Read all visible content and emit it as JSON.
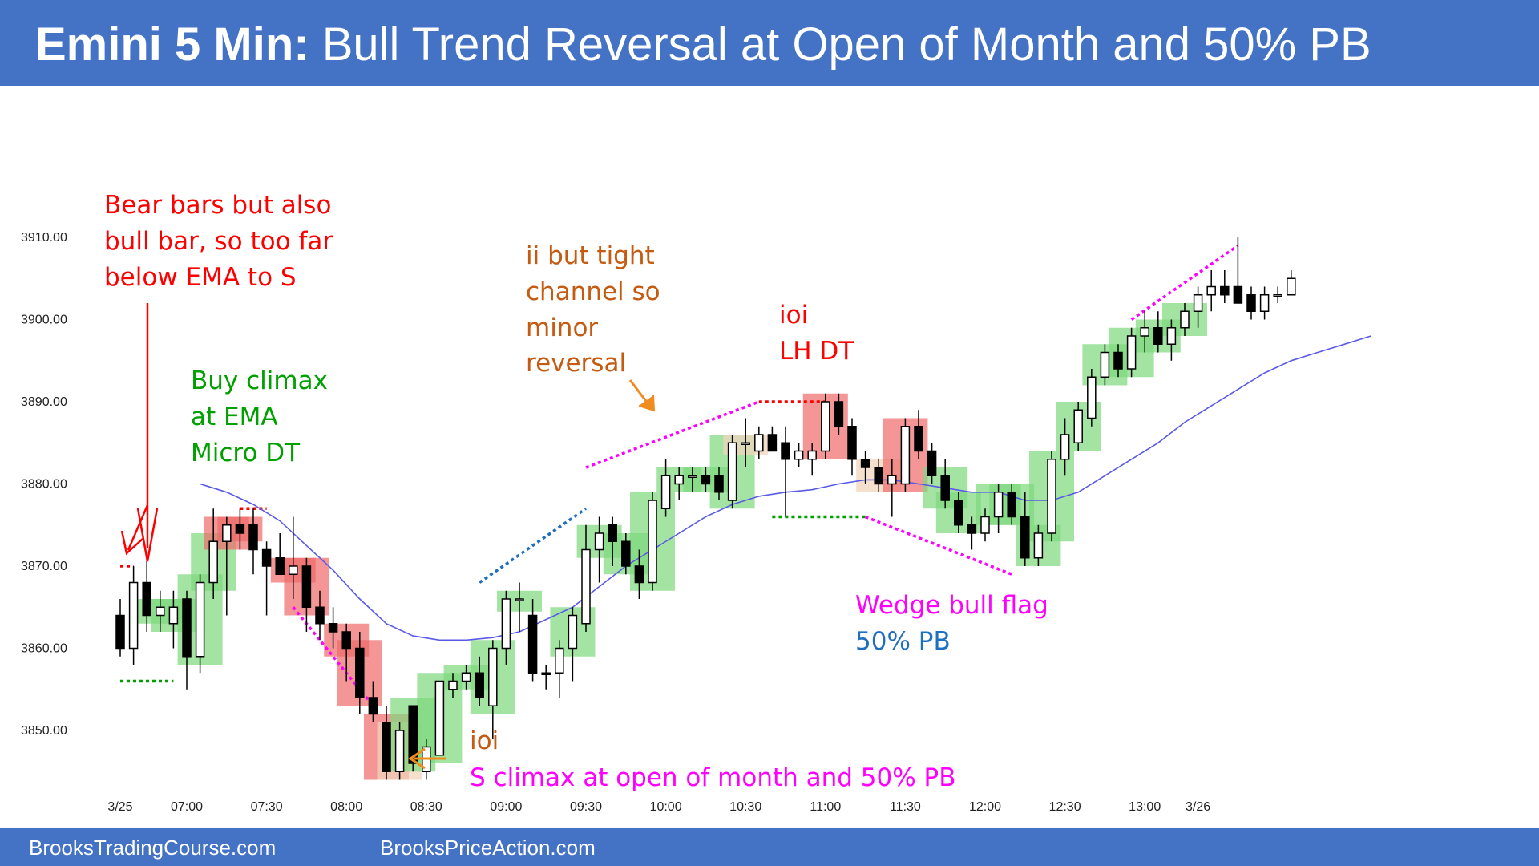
{
  "header": {
    "title_bold": "Emini 5 Min:",
    "title_rest": " Bull Trend Reversal at Open of Month and 50% PB"
  },
  "footer": {
    "left": "BrooksTradingCourse.com",
    "right": "BrooksPriceAction.com"
  },
  "colors": {
    "header_bg": "#4472c4",
    "ema": "#5a5ae6",
    "bull_highlight": "#7cd87c",
    "bear_highlight": "#f06a6a",
    "signal_highlight": "#f2d4bc",
    "red_text": "#ff0000",
    "green_text": "#00a000",
    "orange_text": "#c55a11",
    "magenta_text": "#ff00ff",
    "blue_text": "#1f6fbf"
  },
  "chart_data": {
    "type": "candlestick",
    "title": "",
    "ylim": [
      3843,
      3916
    ],
    "y_ticks": [
      "3850.00",
      "3860.00",
      "3870.00",
      "3880.00",
      "3890.00",
      "3900.00",
      "3910.00"
    ],
    "y_tick_values": [
      3850,
      3860,
      3870,
      3880,
      3890,
      3900,
      3910
    ],
    "x_ticks": [
      {
        "bar": 0,
        "label": "3/25"
      },
      {
        "bar": 5,
        "label": "07:00"
      },
      {
        "bar": 11,
        "label": "07:30"
      },
      {
        "bar": 17,
        "label": "08:00"
      },
      {
        "bar": 23,
        "label": "08:30"
      },
      {
        "bar": 29,
        "label": "09:00"
      },
      {
        "bar": 35,
        "label": "09:30"
      },
      {
        "bar": 41,
        "label": "10:00"
      },
      {
        "bar": 47,
        "label": "10:30"
      },
      {
        "bar": 53,
        "label": "11:00"
      },
      {
        "bar": 59,
        "label": "11:30"
      },
      {
        "bar": 65,
        "label": "12:00"
      },
      {
        "bar": 71,
        "label": "12:30"
      },
      {
        "bar": 77,
        "label": "13:00"
      },
      {
        "bar": 81,
        "label": "3/26"
      }
    ],
    "ohlc": [
      [
        3864,
        3866,
        3859,
        3860
      ],
      [
        3860,
        3870,
        3858,
        3868
      ],
      [
        3868,
        3871,
        3862,
        3864
      ],
      [
        3864,
        3867,
        3862,
        3865
      ],
      [
        3863,
        3867,
        3860,
        3865
      ],
      [
        3866,
        3867,
        3855,
        3859
      ],
      [
        3859,
        3869,
        3857,
        3868
      ],
      [
        3868,
        3877,
        3866,
        3873
      ],
      [
        3873,
        3876,
        3864,
        3875
      ],
      [
        3875,
        3877,
        3872,
        3874
      ],
      [
        3875,
        3877,
        3869,
        3872
      ],
      [
        3872,
        3873,
        3864,
        3870
      ],
      [
        3871,
        3874,
        3869,
        3869
      ],
      [
        3869,
        3876,
        3866,
        3870
      ],
      [
        3870,
        3871,
        3862,
        3865
      ],
      [
        3865,
        3867,
        3861,
        3863
      ],
      [
        3863,
        3865,
        3860,
        3862
      ],
      [
        3862,
        3863,
        3856,
        3860
      ],
      [
        3860,
        3862,
        3852,
        3854
      ],
      [
        3854,
        3856,
        3851,
        3852
      ],
      [
        3851,
        3853,
        3844,
        3845
      ],
      [
        3845,
        3851,
        3844,
        3850
      ],
      [
        3853,
        3853,
        3845,
        3846
      ],
      [
        3845,
        3849,
        3844,
        3848
      ],
      [
        3847,
        3856,
        3847,
        3856
      ],
      [
        3855,
        3857,
        3854,
        3856
      ],
      [
        3856,
        3858,
        3855,
        3857
      ],
      [
        3857,
        3859,
        3853,
        3854
      ],
      [
        3853,
        3861,
        3849,
        3860
      ],
      [
        3860,
        3867,
        3858,
        3866
      ],
      [
        3866,
        3868,
        3862,
        3866
      ],
      [
        3864,
        3866,
        3856,
        3857
      ],
      [
        3857,
        3858,
        3855,
        3857
      ],
      [
        3857,
        3861,
        3854,
        3860
      ],
      [
        3860,
        3865,
        3856,
        3864
      ],
      [
        3863,
        3875,
        3862,
        3872
      ],
      [
        3872,
        3876,
        3868,
        3874
      ],
      [
        3875,
        3876,
        3870,
        3873
      ],
      [
        3873,
        3874,
        3869,
        3870
      ],
      [
        3870,
        3872,
        3866,
        3868
      ],
      [
        3868,
        3879,
        3867,
        3878
      ],
      [
        3877,
        3883,
        3876,
        3881
      ],
      [
        3880,
        3882,
        3878,
        3881
      ],
      [
        3881,
        3882,
        3879,
        3881
      ],
      [
        3881,
        3882,
        3879,
        3880
      ],
      [
        3881,
        3882,
        3878,
        3879
      ],
      [
        3878,
        3886,
        3877,
        3885
      ],
      [
        3885,
        3888,
        3882,
        3885
      ],
      [
        3884,
        3887,
        3883,
        3886
      ],
      [
        3886,
        3887,
        3884,
        3884
      ],
      [
        3885,
        3887,
        3876,
        3883
      ],
      [
        3883,
        3885,
        3882,
        3884
      ],
      [
        3883,
        3885,
        3881,
        3884
      ],
      [
        3884,
        3891,
        3883,
        3890
      ],
      [
        3890,
        3891,
        3886,
        3887
      ],
      [
        3887,
        3888,
        3881,
        3883
      ],
      [
        3883,
        3884,
        3880,
        3882
      ],
      [
        3882,
        3883,
        3879,
        3880
      ],
      [
        3880,
        3883,
        3876,
        3881
      ],
      [
        3880,
        3888,
        3879,
        3887
      ],
      [
        3887,
        3889,
        3883,
        3884
      ],
      [
        3884,
        3885,
        3880,
        3881
      ],
      [
        3881,
        3883,
        3877,
        3878
      ],
      [
        3878,
        3879,
        3874,
        3875
      ],
      [
        3875,
        3876,
        3872,
        3874
      ],
      [
        3874,
        3877,
        3873,
        3876
      ],
      [
        3876,
        3880,
        3874,
        3879
      ],
      [
        3879,
        3880,
        3875,
        3876
      ],
      [
        3876,
        3879,
        3870,
        3871
      ],
      [
        3871,
        3875,
        3870,
        3874
      ],
      [
        3874,
        3884,
        3873,
        3883
      ],
      [
        3883,
        3888,
        3881,
        3886
      ],
      [
        3885,
        3890,
        3884,
        3889
      ],
      [
        3888,
        3894,
        3887,
        3893
      ],
      [
        3893,
        3897,
        3892,
        3896
      ],
      [
        3896,
        3897,
        3893,
        3894
      ],
      [
        3894,
        3899,
        3893,
        3898
      ],
      [
        3898,
        3901,
        3896,
        3899
      ],
      [
        3899,
        3901,
        3896,
        3897
      ],
      [
        3897,
        3900,
        3895,
        3899
      ],
      [
        3899,
        3902,
        3898,
        3901
      ],
      [
        3901,
        3904,
        3899,
        3903
      ],
      [
        3903,
        3906,
        3901,
        3904
      ],
      [
        3904,
        3906,
        3902,
        3903
      ],
      [
        3904,
        3910,
        3902,
        3902
      ],
      [
        3903,
        3904,
        3900,
        3901
      ],
      [
        3901,
        3904,
        3900,
        3903
      ],
      [
        3903,
        3904,
        3902,
        3903
      ],
      [
        3903,
        3906,
        3903,
        3905
      ]
    ],
    "ema": [
      [
        6,
        3880
      ],
      [
        8,
        3879
      ],
      [
        10,
        3877.5
      ],
      [
        12,
        3875.5
      ],
      [
        14,
        3872.5
      ],
      [
        16,
        3869.5
      ],
      [
        18,
        3866
      ],
      [
        20,
        3863
      ],
      [
        22,
        3861.5
      ],
      [
        24,
        3861
      ],
      [
        26,
        3861
      ],
      [
        28,
        3861.3
      ],
      [
        30,
        3862
      ],
      [
        32,
        3863.5
      ],
      [
        34,
        3865
      ],
      [
        36,
        3867.5
      ],
      [
        38,
        3870
      ],
      [
        40,
        3872
      ],
      [
        42,
        3874
      ],
      [
        44,
        3876
      ],
      [
        46,
        3877.5
      ],
      [
        48,
        3878.5
      ],
      [
        50,
        3879
      ],
      [
        52,
        3879.3
      ],
      [
        54,
        3880
      ],
      [
        56,
        3880.5
      ],
      [
        58,
        3880.5
      ],
      [
        60,
        3880
      ],
      [
        62,
        3879.5
      ],
      [
        64,
        3879
      ],
      [
        66,
        3879
      ],
      [
        68,
        3878
      ],
      [
        70,
        3878
      ],
      [
        72,
        3879
      ],
      [
        74,
        3881
      ],
      [
        76,
        3883
      ],
      [
        78,
        3885
      ],
      [
        80,
        3887.5
      ],
      [
        82,
        3889.5
      ],
      [
        84,
        3891.5
      ],
      [
        86,
        3893.5
      ],
      [
        88,
        3895
      ],
      [
        90,
        3896
      ],
      [
        92,
        3897
      ],
      [
        94,
        3898
      ]
    ],
    "annotations": [
      {
        "text": "Bear bars but also",
        "color": "red_text"
      },
      {
        "text": "bull bar, so too far",
        "color": "red_text"
      },
      {
        "text": "below EMA to S",
        "color": "red_text"
      },
      {
        "text": "Buy climax",
        "color": "green_text"
      },
      {
        "text": "at EMA",
        "color": "green_text"
      },
      {
        "text": "Micro DT",
        "color": "green_text"
      },
      {
        "text": "ii but tight",
        "color": "orange_text"
      },
      {
        "text": "channel so",
        "color": "orange_text"
      },
      {
        "text": "minor",
        "color": "orange_text"
      },
      {
        "text": "reversal",
        "color": "orange_text"
      },
      {
        "text": "ioi",
        "color": "red_text"
      },
      {
        "text": "LH DT",
        "color": "red_text"
      },
      {
        "text": "Wedge bull flag",
        "color": "magenta_text"
      },
      {
        "text": "50% PB",
        "color": "blue_text"
      },
      {
        "text": "ioi",
        "color": "orange_text"
      },
      {
        "text": "S climax at open of month and 50% PB",
        "color": "magenta_text"
      }
    ]
  }
}
